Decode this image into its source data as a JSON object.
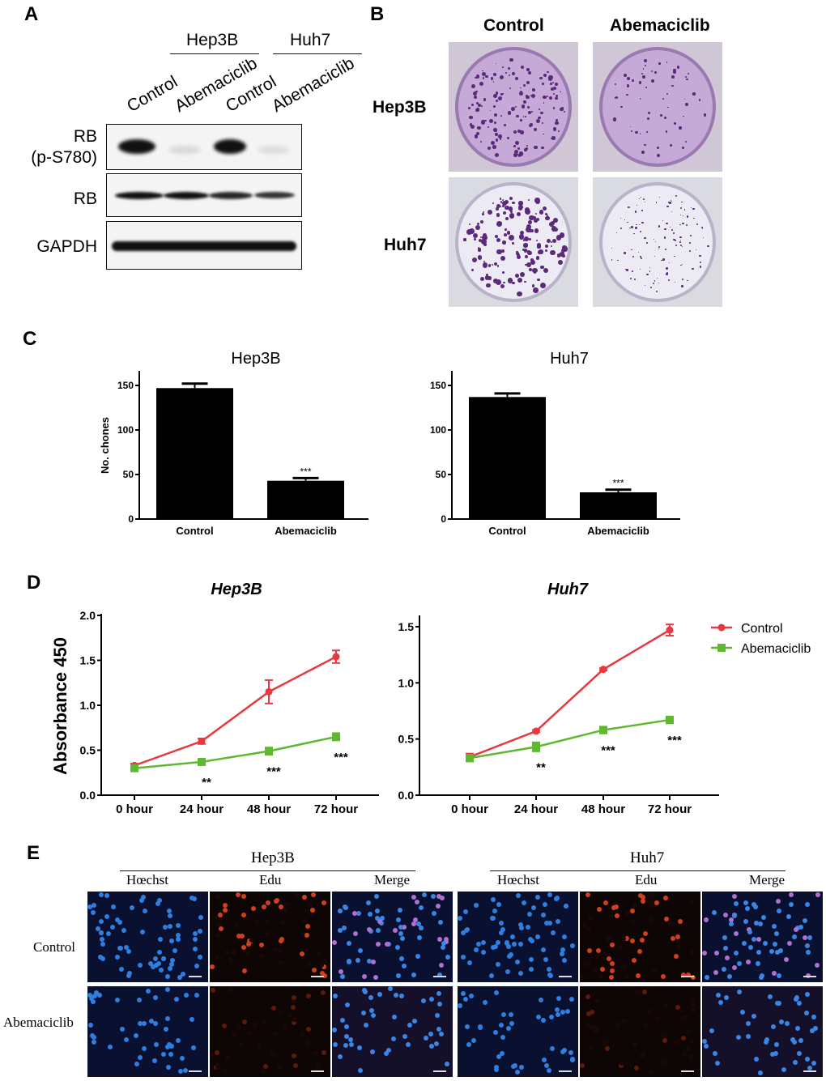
{
  "panels": {
    "a": "A",
    "b": "B",
    "c": "C",
    "d": "D",
    "e": "E"
  },
  "panel_a": {
    "cell_lines": [
      "Hep3B",
      "Huh7"
    ],
    "lanes": [
      "Control",
      "Abemaciclib",
      "Control",
      "Abemaciclib"
    ],
    "rows": [
      {
        "label": "RB\n(p-S780)",
        "line1": "RB",
        "line2": "(p-S780)"
      },
      {
        "label": "RB"
      },
      {
        "label": "GAPDH"
      }
    ]
  },
  "panel_b": {
    "columns": [
      "Control",
      "Abemaciclib"
    ],
    "rows": [
      "Hep3B",
      "Huh7"
    ],
    "stain_color": "#5b2a7a"
  },
  "panel_e": {
    "cell_lines": [
      "Hep3B",
      "Huh7"
    ],
    "channels": [
      "Hœchst",
      "Edu",
      "Merge",
      "Hœchst",
      "Edu",
      "Merge"
    ],
    "rows": [
      "Control",
      "Abemaciclib"
    ]
  },
  "chart_data": [
    {
      "type": "bar",
      "title": "Hep3B",
      "ylabel": "No. chones",
      "categories": [
        "Control",
        "Abemaciclib"
      ],
      "values": [
        147,
        43
      ],
      "errors": [
        5,
        3
      ],
      "annotations": [
        "",
        "***"
      ],
      "ylim": [
        0,
        165
      ],
      "yticks": [
        0,
        50,
        100,
        150
      ],
      "color": "#000000"
    },
    {
      "type": "bar",
      "title": "Huh7",
      "ylabel": "",
      "categories": [
        "Control",
        "Abemaciclib"
      ],
      "values": [
        137,
        30
      ],
      "errors": [
        4,
        3
      ],
      "annotations": [
        "",
        "***"
      ],
      "ylim": [
        0,
        165
      ],
      "yticks": [
        0,
        50,
        100,
        150
      ],
      "color": "#000000"
    },
    {
      "type": "line",
      "title": "Hep3B",
      "ylabel": "Absorbance 450",
      "categories": [
        "0 hour",
        "24 hour",
        "48 hour",
        "72 hour"
      ],
      "ylim": [
        0,
        2.0
      ],
      "yticks": [
        "0.0",
        "0.5",
        "1.0",
        "1.5",
        "2.0"
      ],
      "series": [
        {
          "name": "Control",
          "color": "#e8383d",
          "marker": "circle",
          "values": [
            0.33,
            0.6,
            1.15,
            1.54
          ],
          "errors": [
            0.02,
            0.03,
            0.13,
            0.07
          ]
        },
        {
          "name": "Abemaciclib",
          "color": "#5fb830",
          "marker": "square",
          "values": [
            0.3,
            0.37,
            0.49,
            0.65
          ],
          "errors": [
            0.02,
            0.02,
            0.04,
            0.04
          ]
        }
      ],
      "annotations": [
        "",
        "**",
        "***",
        "***"
      ]
    },
    {
      "type": "line",
      "title": "Huh7",
      "ylabel": "",
      "categories": [
        "0 hour",
        "24 hour",
        "48 hour",
        "72 hour"
      ],
      "ylim": [
        0,
        1.6
      ],
      "yticks": [
        "0.0",
        "0.5",
        "1.0",
        "1.5"
      ],
      "series": [
        {
          "name": "Control",
          "color": "#e8383d",
          "marker": "circle",
          "values": [
            0.34,
            0.57,
            1.12,
            1.47
          ],
          "errors": [
            0.03,
            0.01,
            0.01,
            0.05
          ]
        },
        {
          "name": "Abemaciclib",
          "color": "#5fb830",
          "marker": "square",
          "values": [
            0.33,
            0.43,
            0.58,
            0.67
          ],
          "errors": [
            0.03,
            0.04,
            0.03,
            0.03
          ]
        }
      ],
      "annotations": [
        "",
        "**",
        "***",
        "***"
      ],
      "legend": "right"
    }
  ]
}
